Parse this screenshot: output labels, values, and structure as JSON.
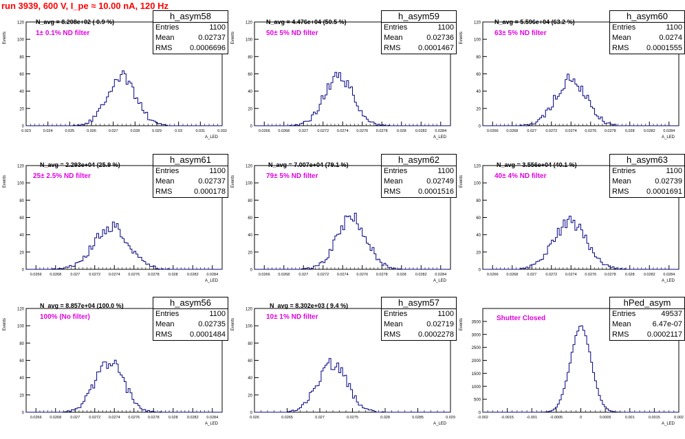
{
  "run_title": "run 3939,   600 V, I_pe ≈ 10.00 nA, 120 Hz",
  "colors": {
    "title": "#ff0000",
    "filter_label": "#e000e0",
    "histogram": "#000080",
    "frame": "#000000"
  },
  "y_axis_label": "Events",
  "x_axis_label": "A_LED",
  "chart_data": [
    {
      "type": "bar",
      "hist_name": "h_asym58",
      "stats": {
        "Entries": "1100",
        "Mean": "0.02737",
        "RMS": "0.0006696"
      },
      "n_avg": "N_avg = 8.208e+02 ( 0.9 %)",
      "filter": "1± 0.1% ND filter",
      "xlim": [
        0.023,
        0.032
      ],
      "ylim": [
        0,
        120
      ],
      "x_ticks": [
        "0.023",
        "0.024",
        "0.025",
        "0.026",
        "0.027",
        "0.028",
        "0.029",
        "0.03",
        "0.031",
        "0.032"
      ],
      "y_ticks": [
        "0",
        "20",
        "40",
        "60",
        "80",
        "100",
        "120"
      ],
      "mean": 0.02737,
      "sigma": 0.00067,
      "peak": 65
    },
    {
      "type": "bar",
      "hist_name": "h_asym59",
      "stats": {
        "Entries": "1100",
        "Mean": "0.02736",
        "RMS": "0.0001467"
      },
      "n_avg": "N_avg = 4.476e+04 (50.5 %)",
      "filter": "50± 5% ND filter",
      "xlim": [
        0.0265,
        0.0285
      ],
      "ylim": [
        0,
        120
      ],
      "x_ticks": [
        "0.0266",
        "0.0268",
        "0.027",
        "0.0272",
        "0.0274",
        "0.0276",
        "0.0278",
        "0.028",
        "0.0282",
        "0.0284"
      ],
      "y_ticks": [
        "0",
        "20",
        "40",
        "60",
        "80",
        "100",
        "120"
      ],
      "mean": 0.02736,
      "sigma": 0.000147,
      "peak": 66
    },
    {
      "type": "bar",
      "hist_name": "h_asym60",
      "stats": {
        "Entries": "1100",
        "Mean": "0.0274",
        "RMS": "0.0001555"
      },
      "n_avg": "N_avg = 5.596e+04 (63.2 %)",
      "filter": "63± 5% ND filter",
      "xlim": [
        0.0265,
        0.0285
      ],
      "ylim": [
        0,
        120
      ],
      "x_ticks": [
        "0.0266",
        "0.0268",
        "0.027",
        "0.0272",
        "0.0274",
        "0.0276",
        "0.0278",
        "0.028",
        "0.0282",
        "0.0284"
      ],
      "y_ticks": [
        "0",
        "20",
        "40",
        "60",
        "80",
        "100",
        "120"
      ],
      "mean": 0.0274,
      "sigma": 0.000156,
      "peak": 62
    },
    {
      "type": "bar",
      "hist_name": "h_asym61",
      "stats": {
        "Entries": "1100",
        "Mean": "0.02737",
        "RMS": "0.000178"
      },
      "n_avg": "N_avg = 2.293e+04 (25.9 %)",
      "filter": "25± 2.5% ND filter",
      "xlim": [
        0.0265,
        0.0285
      ],
      "ylim": [
        0,
        120
      ],
      "x_ticks": [
        "0.0266",
        "0.0268",
        "0.027",
        "0.0272",
        "0.0274",
        "0.0276",
        "0.0278",
        "0.028",
        "0.0282",
        "0.0284"
      ],
      "y_ticks": [
        "0",
        "20",
        "40",
        "60",
        "80",
        "100",
        "120"
      ],
      "mean": 0.02737,
      "sigma": 0.000178,
      "peak": 56
    },
    {
      "type": "bar",
      "hist_name": "h_asym62",
      "stats": {
        "Entries": "1100",
        "Mean": "0.02749",
        "RMS": "0.0001516"
      },
      "n_avg": "N_avg = 7.007e+04 (79.1 %)",
      "filter": "79± 5% ND filter",
      "xlim": [
        0.0265,
        0.0285
      ],
      "ylim": [
        0,
        120
      ],
      "x_ticks": [
        "0.0266",
        "0.0268",
        "0.027",
        "0.0272",
        "0.0274",
        "0.0276",
        "0.0278",
        "0.028",
        "0.0282",
        "0.0284"
      ],
      "y_ticks": [
        "0",
        "20",
        "40",
        "60",
        "80",
        "100",
        "120"
      ],
      "mean": 0.02749,
      "sigma": 0.000152,
      "peak": 68
    },
    {
      "type": "bar",
      "hist_name": "h_asym63",
      "stats": {
        "Entries": "1100",
        "Mean": "0.02739",
        "RMS": "0.0001691"
      },
      "n_avg": "N_avg = 3.556e+04 (40.1 %)",
      "filter": "40± 4% ND filter",
      "xlim": [
        0.0265,
        0.0285
      ],
      "ylim": [
        0,
        120
      ],
      "x_ticks": [
        "0.0266",
        "0.0268",
        "0.027",
        "0.0272",
        "0.0274",
        "0.0276",
        "0.0278",
        "0.028",
        "0.0282",
        "0.0284"
      ],
      "y_ticks": [
        "0",
        "20",
        "40",
        "60",
        "80",
        "100",
        "120"
      ],
      "mean": 0.02739,
      "sigma": 0.000169,
      "peak": 62
    },
    {
      "type": "bar",
      "hist_name": "h_asym56",
      "stats": {
        "Entries": "1100",
        "Mean": "0.02735",
        "RMS": "0.0001484"
      },
      "n_avg": "N_avg = 8.857e+04 (100.0 %)",
      "filter": "100% (No filter)",
      "xlim": [
        0.0265,
        0.0285
      ],
      "ylim": [
        0,
        120
      ],
      "x_ticks": [
        "0.0266",
        "0.0268",
        "0.027",
        "0.0272",
        "0.0274",
        "0.0276",
        "0.0278",
        "0.028",
        "0.0282",
        "0.0284"
      ],
      "y_ticks": [
        "0",
        "20",
        "40",
        "60",
        "80",
        "100",
        "120"
      ],
      "mean": 0.02735,
      "sigma": 0.000148,
      "peak": 66
    },
    {
      "type": "bar",
      "hist_name": "h_asym57",
      "stats": {
        "Entries": "1100",
        "Mean": "0.02719",
        "RMS": "0.0002278"
      },
      "n_avg": "N_avg = 8.302e+03 ( 9.4 %)",
      "filter": "10± 1% ND filter",
      "xlim": [
        0.026,
        0.029
      ],
      "ylim": [
        0,
        120
      ],
      "x_ticks": [
        "0.026",
        "0.0265",
        "0.027",
        "0.0275",
        "0.028",
        "0.0285",
        "0.029"
      ],
      "y_ticks": [
        "0",
        "20",
        "40",
        "60",
        "80",
        "100",
        "120"
      ],
      "mean": 0.02719,
      "sigma": 0.000228,
      "peak": 64
    },
    {
      "type": "bar",
      "hist_name": "hPed_asym",
      "stats": {
        "Entries": "49537",
        "Mean": "6.47e-07",
        "RMS": "0.0002117"
      },
      "n_avg": "",
      "filter": "Shutter Closed",
      "xlim": [
        -0.002,
        0.002
      ],
      "ylim": [
        0,
        4000
      ],
      "x_ticks": [
        "-0.002",
        "-0.0015",
        "-0.001",
        "-0.0005",
        "0",
        "0.0005",
        "0.001",
        "0.0015",
        "0.002"
      ],
      "y_ticks": [
        "0",
        "500",
        "1000",
        "1500",
        "2000",
        "2500",
        "3000",
        "3500"
      ],
      "mean": 6e-07,
      "sigma": 0.000212,
      "peak": 3750
    }
  ]
}
